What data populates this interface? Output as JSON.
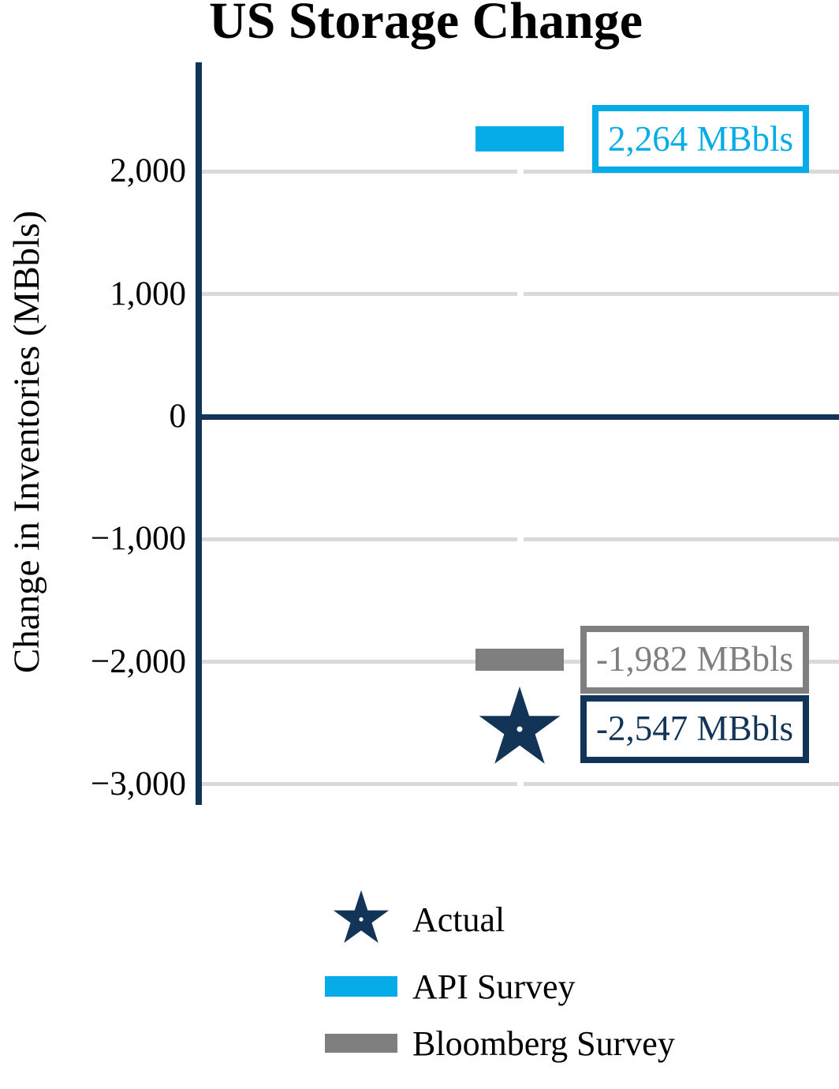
{
  "title": "US Storage Change",
  "chart_data": {
    "type": "bar",
    "title": "US Storage Change",
    "ylabel": "Change in Inventories (MBbls)",
    "categories": [
      "US Storage Change"
    ],
    "ylim": [
      -3180,
      2890
    ],
    "grid": true,
    "legend_position": "bottom",
    "yticks": [
      {
        "value": 2000,
        "label": "2,000"
      },
      {
        "value": 1000,
        "label": "1,000"
      },
      {
        "value": 0,
        "label": "0"
      },
      {
        "value": -1000,
        "label": "−1,000"
      },
      {
        "value": -2000,
        "label": "−2,000"
      },
      {
        "value": -3000,
        "label": "−3,000"
      }
    ],
    "series": [
      {
        "name": "API Survey",
        "marker": "bar",
        "value": 2264,
        "annotation": "2,264 MBbls",
        "color": "#06ACE8"
      },
      {
        "name": "Bloomberg Survey",
        "marker": "bar",
        "value": -1982,
        "annotation": "-1,982 MBbls",
        "color": "#7F7F7F"
      },
      {
        "name": "Actual",
        "marker": "star",
        "value": -2547,
        "annotation": "-2,547 MBbls",
        "color": "#113457"
      }
    ]
  },
  "legend": {
    "items": [
      {
        "series": "Actual",
        "label": "Actual",
        "icon": "star-icon"
      },
      {
        "series": "API Survey",
        "label": "API Survey",
        "icon": "bar-swatch-icon"
      },
      {
        "series": "Bloomberg Survey",
        "label": "Bloomberg Survey",
        "icon": "bar-swatch-icon"
      }
    ]
  },
  "colors": {
    "navy": "#113457",
    "blue": "#06ACE8",
    "gray": "#7F7F7F",
    "gridline": "#D9D9D9",
    "background": "#FFFFFF",
    "text": "#000000"
  }
}
